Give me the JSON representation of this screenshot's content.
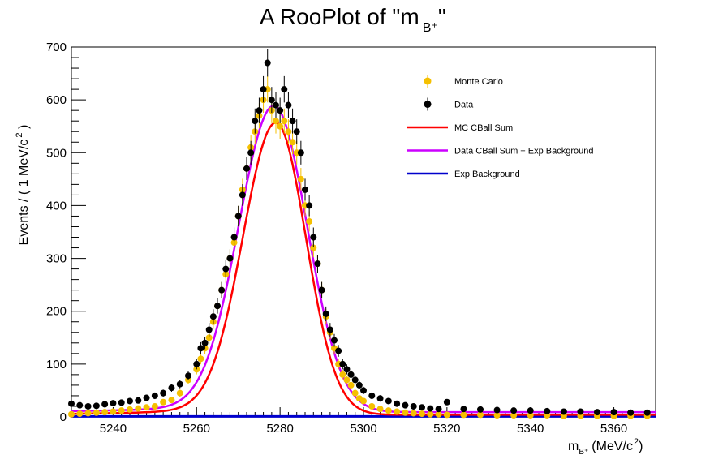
{
  "chart_data": {
    "type": "scatter",
    "title": "A RooPlot of \"m B⁺\"",
    "title_text": "A RooPlot of \"m",
    "title_sub": "B⁺",
    "title_end": "\"",
    "xlabel": "m",
    "xlabel_sub": "B⁺",
    "xlabel_units": "(MeV/c",
    "xlabel_sup": "2",
    "xlabel_close": ")",
    "ylabel": "Events / ( 1 MeV/c",
    "ylabel_sup": "2",
    "ylabel_close": " )",
    "xlim": [
      5230,
      5370
    ],
    "ylim": [
      0,
      700
    ],
    "xticks": [
      5240,
      5260,
      5280,
      5300,
      5320,
      5340,
      5360
    ],
    "yticks": [
      0,
      100,
      200,
      300,
      400,
      500,
      600,
      700
    ],
    "legend_position": "top-right",
    "colors": {
      "monte_carlo": "#f5c000",
      "data": "#000000",
      "mc_cball_sum": "#ff0000",
      "data_cball_exp": "#cc00ff",
      "exp_background": "#0000cc"
    },
    "legend": [
      {
        "label": "Monte Carlo",
        "kind": "marker",
        "color": "#f5c000"
      },
      {
        "label": "Data",
        "kind": "marker",
        "color": "#000000"
      },
      {
        "label": "MC CBall Sum",
        "kind": "line",
        "color": "#ff0000"
      },
      {
        "label": "Data CBall Sum + Exp Background",
        "kind": "line",
        "color": "#cc00ff"
      },
      {
        "label": "Exp Background",
        "kind": "line",
        "color": "#0000cc"
      }
    ],
    "series": [
      {
        "name": "Data",
        "type": "scatter",
        "x": [
          5230,
          5232,
          5234,
          5236,
          5238,
          5240,
          5242,
          5244,
          5246,
          5248,
          5250,
          5252,
          5254,
          5256,
          5258,
          5260,
          5261,
          5262,
          5263,
          5264,
          5265,
          5266,
          5267,
          5268,
          5269,
          5270,
          5271,
          5272,
          5273,
          5274,
          5275,
          5276,
          5277,
          5278,
          5279,
          5280,
          5281,
          5282,
          5283,
          5284,
          5285,
          5286,
          5287,
          5288,
          5289,
          5290,
          5291,
          5292,
          5293,
          5294,
          5295,
          5296,
          5297,
          5298,
          5299,
          5300,
          5302,
          5304,
          5306,
          5308,
          5310,
          5312,
          5314,
          5316,
          5318,
          5320,
          5324,
          5328,
          5332,
          5336,
          5340,
          5344,
          5348,
          5352,
          5356,
          5360,
          5364,
          5368
        ],
        "y": [
          25,
          22,
          20,
          21,
          24,
          26,
          27,
          30,
          31,
          36,
          40,
          45,
          55,
          62,
          78,
          100,
          130,
          140,
          165,
          190,
          210,
          240,
          280,
          300,
          340,
          380,
          420,
          470,
          500,
          560,
          580,
          620,
          670,
          600,
          590,
          580,
          620,
          590,
          560,
          540,
          500,
          430,
          400,
          340,
          290,
          240,
          195,
          165,
          145,
          125,
          100,
          90,
          80,
          70,
          60,
          50,
          40,
          35,
          30,
          25,
          22,
          20,
          18,
          16,
          15,
          28,
          15,
          14,
          13,
          12,
          12,
          11,
          10,
          10,
          9,
          9,
          8,
          8
        ]
      },
      {
        "name": "Monte Carlo",
        "type": "scatter",
        "x": [
          5230,
          5232,
          5234,
          5236,
          5238,
          5240,
          5242,
          5244,
          5246,
          5248,
          5250,
          5252,
          5254,
          5256,
          5258,
          5260,
          5261,
          5262,
          5263,
          5264,
          5265,
          5266,
          5267,
          5268,
          5269,
          5270,
          5271,
          5272,
          5273,
          5274,
          5275,
          5276,
          5277,
          5278,
          5279,
          5280,
          5281,
          5282,
          5283,
          5284,
          5285,
          5286,
          5287,
          5288,
          5289,
          5290,
          5291,
          5292,
          5293,
          5294,
          5295,
          5296,
          5297,
          5298,
          5299,
          5300,
          5302,
          5304,
          5306,
          5308,
          5310,
          5312,
          5314,
          5316,
          5318,
          5320,
          5324,
          5328,
          5332,
          5336,
          5340,
          5344,
          5348,
          5352,
          5356,
          5360,
          5364,
          5368
        ],
        "y": [
          5,
          6,
          7,
          8,
          9,
          10,
          12,
          14,
          16,
          18,
          20,
          28,
          32,
          45,
          70,
          90,
          110,
          130,
          150,
          180,
          210,
          240,
          270,
          300,
          330,
          380,
          430,
          470,
          510,
          540,
          570,
          600,
          620,
          580,
          560,
          550,
          560,
          540,
          520,
          500,
          450,
          400,
          370,
          320,
          290,
          240,
          190,
          160,
          130,
          100,
          80,
          70,
          60,
          45,
          35,
          30,
          20,
          15,
          12,
          10,
          8,
          7,
          6,
          5,
          5,
          4,
          4,
          4,
          3,
          3,
          3,
          3,
          2,
          2,
          2,
          2,
          2,
          2
        ]
      },
      {
        "name": "MC CBall Sum",
        "type": "line",
        "peak": 553,
        "mean": 5279,
        "sigma_left": 7.8,
        "sigma_right": 7.2,
        "baseline": 4
      },
      {
        "name": "Data CBall Sum + Exp Background",
        "type": "line",
        "peak": 580,
        "mean": 5278.5,
        "sigma_left": 8.3,
        "sigma_right": 8.0,
        "baseline": 9
      },
      {
        "name": "Exp Background",
        "type": "line",
        "value": 1
      }
    ]
  }
}
